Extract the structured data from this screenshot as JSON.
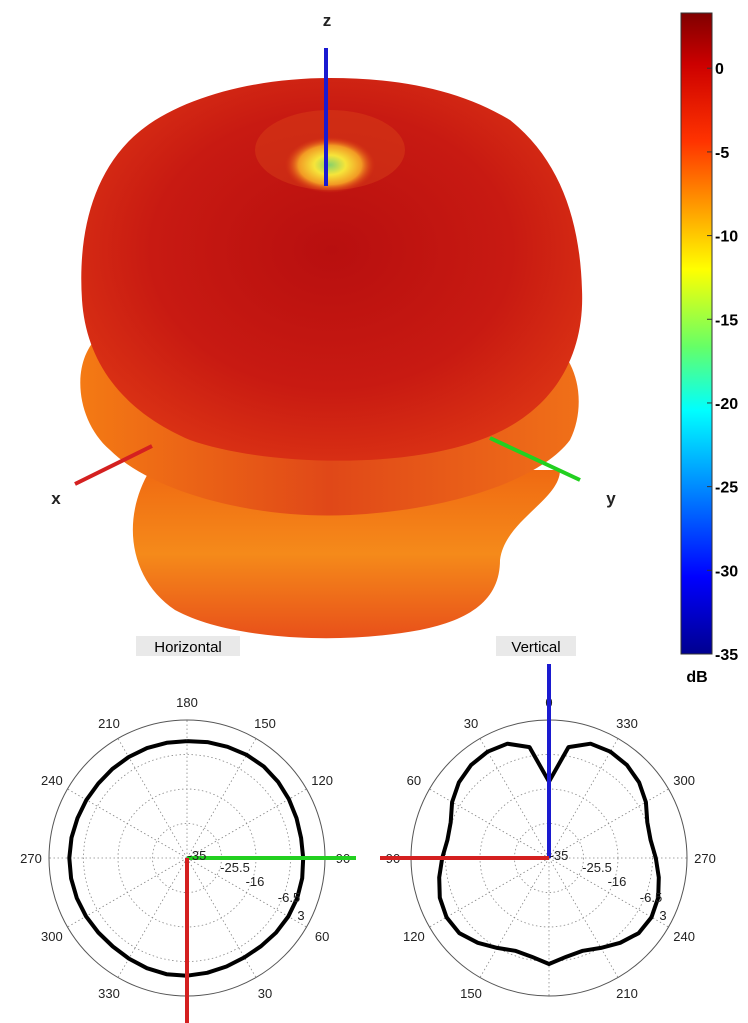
{
  "pattern3d": {
    "axes": {
      "z": "z",
      "x": "x",
      "y": "y"
    },
    "colors": {
      "z": "#1a1ad0",
      "x": "#d42020",
      "y": "#22d020"
    }
  },
  "colorbar": {
    "ticks": [
      "0",
      "-5",
      "-10",
      "-15",
      "-20",
      "-25",
      "-30",
      "-35"
    ],
    "tick_values": [
      0,
      -5,
      -10,
      -15,
      -20,
      -25,
      -30,
      -35
    ],
    "max": 3.3,
    "min": -35,
    "unit": "dB",
    "colormap": "jet"
  },
  "horizontal": {
    "title": "Horizontal",
    "angle_labels": [
      "180",
      "150",
      "120",
      "90",
      "60",
      "30",
      "330",
      "300",
      "270",
      "240",
      "210"
    ],
    "ring_labels": [
      "-35",
      "-25.5",
      "-16",
      "-6.5",
      "3"
    ],
    "rmin": -35,
    "rmax": 3,
    "pattern_gain_db": [
      -2.8,
      -2.6,
      -2.4,
      -2.2,
      -2.1,
      -2.3,
      -2.6,
      -2.9,
      -3.1,
      -3.0,
      -2.8,
      -2.7,
      -2.8,
      -3.0,
      -3.3,
      -3.4,
      -3.2,
      -2.9,
      -2.6,
      -2.5,
      -2.7,
      -3.0,
      -3.2,
      -3.1,
      -2.9,
      -2.7,
      -2.6,
      -2.6,
      -2.7,
      -2.9,
      -3.0,
      -3.1,
      -3.0,
      -2.9,
      -2.8,
      -2.8
    ]
  },
  "vertical": {
    "title": "Vertical",
    "angle_labels": [
      "0",
      "30",
      "60",
      "90",
      "120",
      "150",
      "210",
      "240",
      "270",
      "300",
      "330"
    ],
    "ring_labels": [
      "-35",
      "-25.5",
      "-16",
      "-6.5",
      "3"
    ],
    "rmin": -35,
    "rmax": 3,
    "pattern_gain_db": [
      -14,
      -4,
      -1.5,
      -1.2,
      -1.6,
      -2.6,
      -4.2,
      -6.2,
      -6.6,
      -5.6,
      -4.3,
      -3.0,
      -2.4,
      -2.8,
      -4.5,
      -6.4,
      -7.8,
      -7.4,
      -5.8,
      -7.4,
      -7.8,
      -6.4,
      -4.5,
      -2.8,
      -2.4,
      -3.0,
      -4.3,
      -5.6,
      -6.6,
      -6.2,
      -4.2,
      -2.6,
      -1.6,
      -1.2,
      -1.5,
      -4
    ]
  }
}
